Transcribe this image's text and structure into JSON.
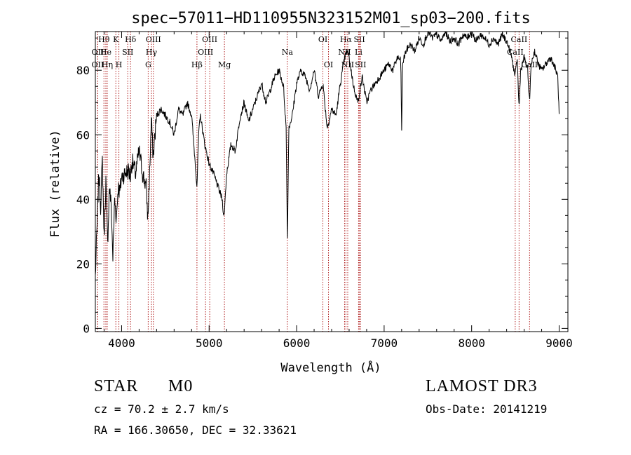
{
  "chart_data": {
    "type": "line",
    "title": "spec−57011−HD110955N323152M01_sp03−200.fits",
    "xlabel": "Wavelength (Å)",
    "ylabel": "Flux (relative)",
    "xlim": [
      3700,
      9100
    ],
    "ylim": [
      -1,
      92
    ],
    "xticks": [
      4000,
      5000,
      6000,
      7000,
      8000,
      9000
    ],
    "yticks": [
      0,
      20,
      40,
      60,
      80
    ],
    "xtick_labels": [
      "4000",
      "5000",
      "6000",
      "7000",
      "8000",
      "9000"
    ],
    "ytick_labels": [
      "0",
      "20",
      "40",
      "60",
      "80"
    ],
    "series": [
      {
        "name": "flux",
        "color": "#000000",
        "x": [
          3700,
          3720,
          3740,
          3760,
          3780,
          3800,
          3820,
          3840,
          3860,
          3880,
          3900,
          3920,
          3940,
          3960,
          3980,
          4000,
          4040,
          4080,
          4100,
          4120,
          4160,
          4200,
          4240,
          4280,
          4300,
          4320,
          4340,
          4360,
          4380,
          4400,
          4450,
          4500,
          4550,
          4600,
          4650,
          4700,
          4750,
          4800,
          4850,
          4861,
          4880,
          4900,
          4950,
          5000,
          5050,
          5100,
          5150,
          5170,
          5183,
          5200,
          5250,
          5300,
          5350,
          5400,
          5450,
          5500,
          5550,
          5600,
          5650,
          5700,
          5750,
          5800,
          5850,
          5880,
          5890,
          5896,
          5910,
          5950,
          6000,
          6050,
          6100,
          6150,
          6200,
          6250,
          6300,
          6350,
          6400,
          6450,
          6500,
          6550,
          6563,
          6580,
          6600,
          6650,
          6700,
          6750,
          6800,
          6850,
          6900,
          6950,
          7000,
          7050,
          7100,
          7150,
          7190,
          7200,
          7210,
          7250,
          7300,
          7350,
          7400,
          7450,
          7500,
          7550,
          7600,
          7650,
          7700,
          7750,
          7800,
          7850,
          7900,
          7950,
          8000,
          8050,
          8100,
          8150,
          8200,
          8250,
          8300,
          8350,
          8400,
          8450,
          8498,
          8520,
          8542,
          8560,
          8600,
          8640,
          8662,
          8680,
          8720,
          8760,
          8800,
          8850,
          8900,
          8950,
          8985,
          9000
        ],
        "y": [
          16,
          32,
          48,
          38,
          52,
          28,
          46,
          26,
          44,
          38,
          22,
          40,
          34,
          44,
          42,
          47,
          48,
          49,
          47,
          52,
          48,
          55,
          48,
          44,
          34,
          48,
          65,
          53,
          60,
          66,
          68,
          66,
          64,
          60,
          68,
          66,
          70,
          66,
          48,
          44,
          60,
          66,
          57,
          51,
          48,
          44,
          40,
          34,
          40,
          48,
          57,
          55,
          65,
          70,
          64,
          68,
          72,
          76,
          70,
          74,
          78,
          80,
          75,
          62,
          38,
          28,
          62,
          66,
          76,
          80,
          78,
          74,
          80,
          72,
          76,
          62,
          68,
          66,
          76,
          84,
          85,
          86,
          84,
          75,
          70,
          78,
          70,
          74,
          76,
          78,
          80,
          82,
          80,
          84,
          83,
          61,
          82,
          86,
          88,
          86,
          90,
          88,
          92,
          90,
          91,
          89,
          92,
          89,
          90,
          88,
          91,
          90,
          92,
          89,
          91,
          90,
          88,
          90,
          88,
          91,
          89,
          85,
          78,
          84,
          68,
          80,
          84,
          80,
          70,
          82,
          86,
          82,
          80,
          82,
          84,
          81,
          78,
          66
        ]
      }
    ],
    "lines": [
      {
        "label": "Hθ",
        "wavelength": 3798,
        "row": 1
      },
      {
        "label": "OII",
        "wavelength": 3727,
        "row": 2
      },
      {
        "label": "OII",
        "wavelength": 3727,
        "row": 3
      },
      {
        "label": "He",
        "wavelength": 3820,
        "row": 2
      },
      {
        "label": "Hη",
        "wavelength": 3836,
        "row": 3
      },
      {
        "label": "K",
        "wavelength": 3934,
        "row": 1
      },
      {
        "label": "SII",
        "wavelength": 4070,
        "row": 2
      },
      {
        "label": "H",
        "wavelength": 3969,
        "row": 3
      },
      {
        "label": "Hδ",
        "wavelength": 4102,
        "row": 1
      },
      {
        "label": "OIII",
        "wavelength": 4363,
        "row": 1
      },
      {
        "label": "Hγ",
        "wavelength": 4341,
        "row": 2
      },
      {
        "label": "G",
        "wavelength": 4304,
        "row": 3
      },
      {
        "label": "Hβ",
        "wavelength": 4861,
        "row": 3
      },
      {
        "label": "OIII",
        "wavelength": 5007,
        "row": 1
      },
      {
        "label": "OIII",
        "wavelength": 4959,
        "row": 2
      },
      {
        "label": "Mg",
        "wavelength": 5175,
        "row": 3
      },
      {
        "label": "Na",
        "wavelength": 5894,
        "row": 2
      },
      {
        "label": "OI",
        "wavelength": 6300,
        "row": 1
      },
      {
        "label": "OI",
        "wavelength": 6364,
        "row": 3
      },
      {
        "label": "Hα",
        "wavelength": 6563,
        "row": 1
      },
      {
        "label": "NII",
        "wavelength": 6548,
        "row": 2
      },
      {
        "label": "NII",
        "wavelength": 6584,
        "row": 3
      },
      {
        "label": "SII",
        "wavelength": 6717,
        "row": 1
      },
      {
        "label": "Li",
        "wavelength": 6708,
        "row": 2
      },
      {
        "label": "SII",
        "wavelength": 6731,
        "row": 3
      },
      {
        "label": "CaII",
        "wavelength": 8542,
        "row": 1
      },
      {
        "label": "CaII",
        "wavelength": 8498,
        "row": 2
      },
      {
        "label": "CaII",
        "wavelength": 8662,
        "row": 3
      }
    ]
  },
  "info": {
    "class_label": "STAR",
    "subclass": "M0",
    "survey": "LAMOST DR3",
    "cz": "cz = 70.2 ± 2.7 km/s",
    "obs_date": "Obs-Date: 20141219",
    "coords": "RA = 166.30650, DEC =  32.33621"
  }
}
